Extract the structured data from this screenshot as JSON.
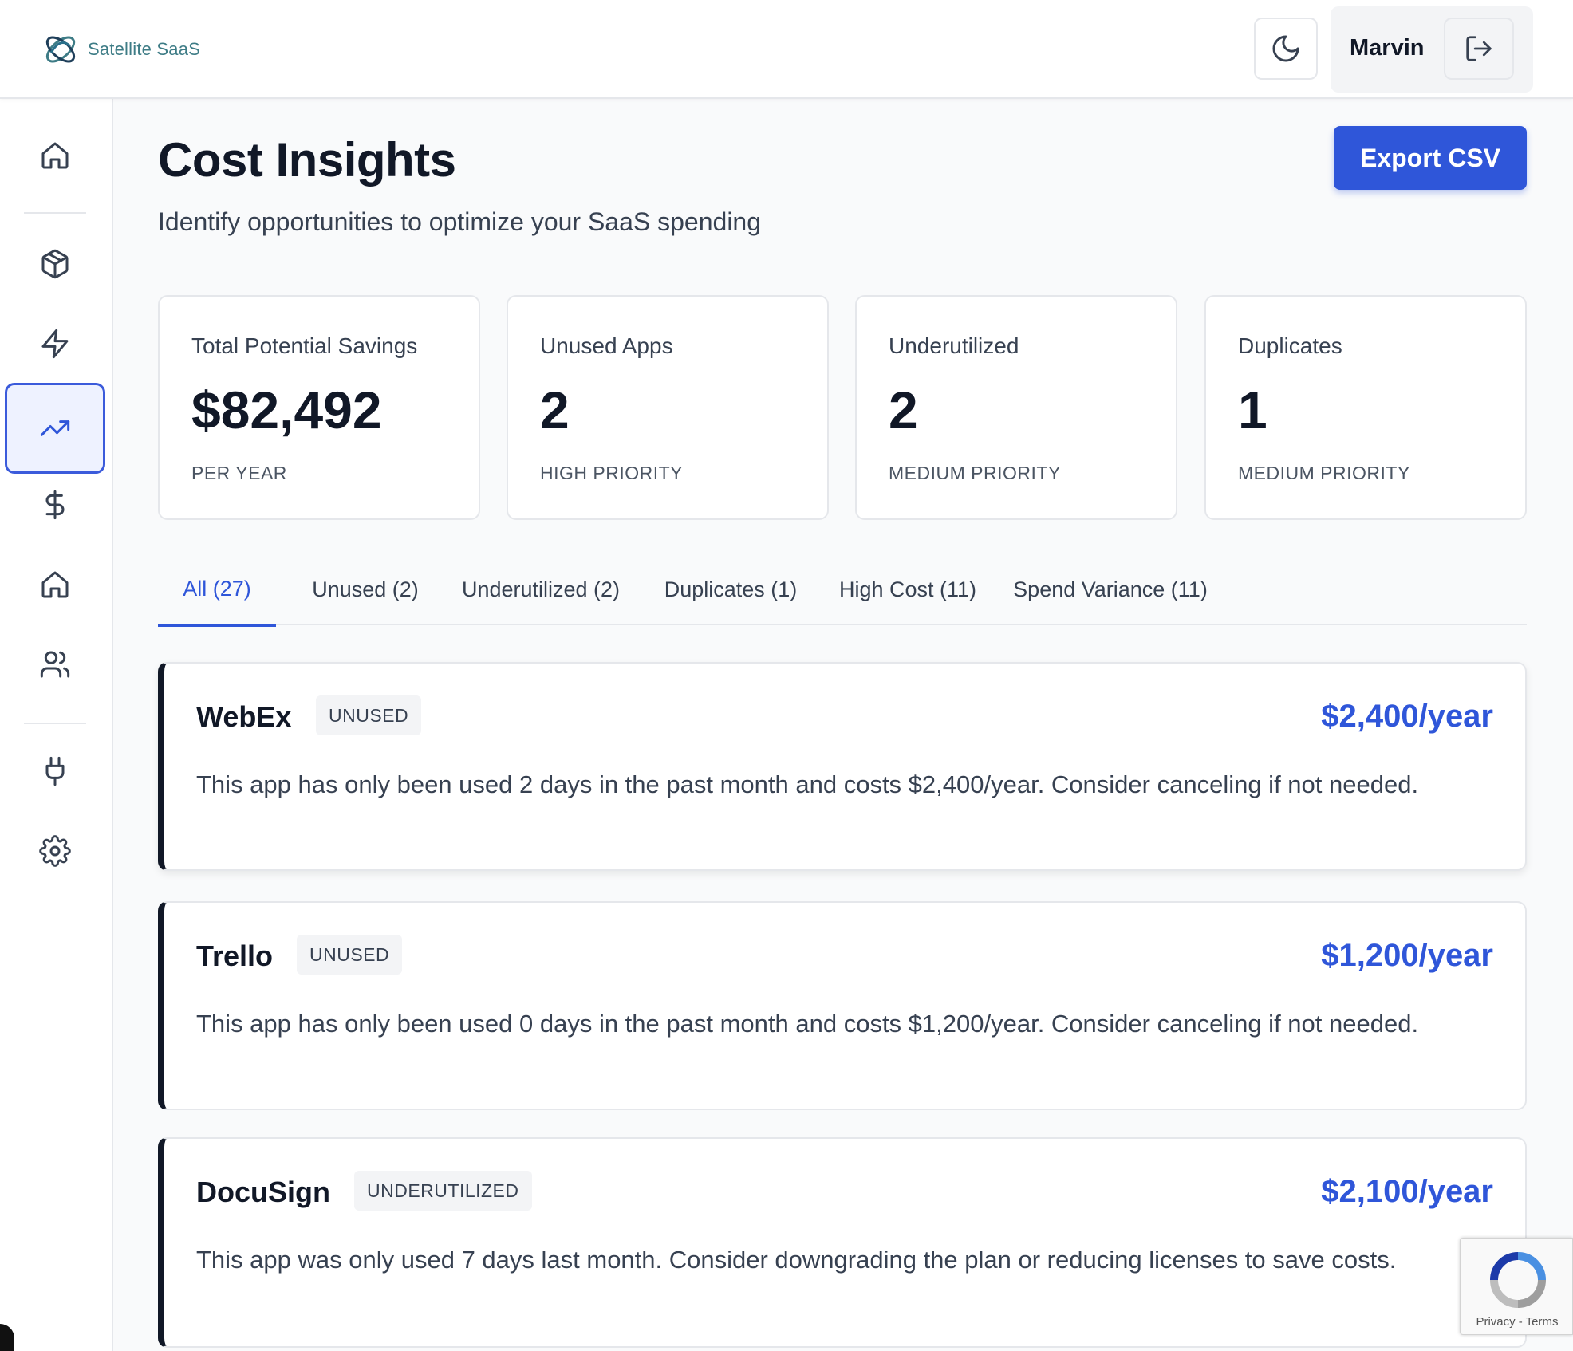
{
  "app": {
    "brand": "Satellite SaaS",
    "user_name": "Marvin",
    "brand_color": "#3e7c86",
    "accent_color": "#2f56d9"
  },
  "header": {
    "theme_icon": "moon-icon",
    "logout_icon": "logout-icon"
  },
  "sidebar": {
    "items": [
      {
        "icon": "home-icon"
      },
      {
        "icon": "package-icon"
      },
      {
        "icon": "lightning-icon"
      },
      {
        "icon": "trending-up-icon",
        "active": true
      },
      {
        "icon": "dollar-icon"
      },
      {
        "icon": "home-icon"
      },
      {
        "icon": "users-icon"
      },
      {
        "icon": "plug-icon"
      },
      {
        "icon": "gear-icon"
      }
    ]
  },
  "page": {
    "title": "Cost Insights",
    "subtitle": "Identify opportunities to optimize your SaaS spending",
    "export_label": "Export CSV"
  },
  "stats": [
    {
      "label": "Total Potential Savings",
      "value": "$82,492",
      "sub": "PER YEAR"
    },
    {
      "label": "Unused Apps",
      "value": "2",
      "sub": "HIGH PRIORITY"
    },
    {
      "label": "Underutilized",
      "value": "2",
      "sub": "MEDIUM PRIORITY"
    },
    {
      "label": "Duplicates",
      "value": "1",
      "sub": "MEDIUM PRIORITY"
    }
  ],
  "tabs": [
    {
      "label": "All (27)",
      "active": true
    },
    {
      "label": "Unused (2)"
    },
    {
      "label": "Underutilized (2)"
    },
    {
      "label": "Duplicates (1)"
    },
    {
      "label": "High Cost (11)"
    },
    {
      "label": "Spend Variance (11)"
    }
  ],
  "insights": [
    {
      "name": "WebEx",
      "badge": "UNUSED",
      "cost": "$2,400/year",
      "description": "This app has only been used 2 days in the past month and costs $2,400/year. Consider canceling if not needed."
    },
    {
      "name": "Trello",
      "badge": "UNUSED",
      "cost": "$1,200/year",
      "description": "This app has only been used 0 days in the past month and costs $1,200/year. Consider canceling if not needed."
    },
    {
      "name": "DocuSign",
      "badge": "UNDERUTILIZED",
      "cost": "$2,100/year",
      "description": "This app was only used 7 days last month. Consider downgrading the plan or reducing licenses to save costs."
    }
  ],
  "recaptcha": {
    "links": "Privacy - Terms"
  }
}
